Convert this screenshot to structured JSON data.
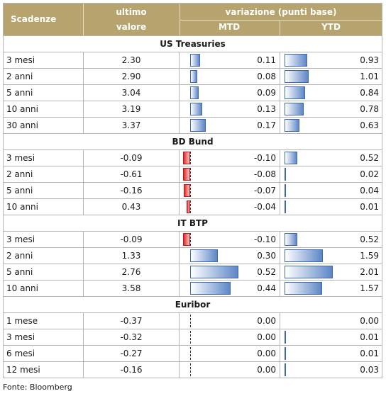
{
  "header": {
    "scadenze": "Scadenze",
    "ultimo_line1": "ultimo",
    "ultimo_line2": "valore",
    "variazione": "variazione (punti base)",
    "mtd": "MTD",
    "ytd": "YTD"
  },
  "colors": {
    "header_bg": "#b7a36e",
    "positive_bar": "#5e86c6",
    "negative_bar": "#e52b2b"
  },
  "sections": [
    {
      "title": "US Treasuries",
      "rows": [
        {
          "label": "3 mesi",
          "value": "2.30",
          "mtd": "0.11",
          "ytd": "0.93"
        },
        {
          "label": "2 anni",
          "value": "2.90",
          "mtd": "0.08",
          "ytd": "1.01"
        },
        {
          "label": "5 anni",
          "value": "3.04",
          "mtd": "0.09",
          "ytd": "0.84"
        },
        {
          "label": "10 anni",
          "value": "3.19",
          "mtd": "0.13",
          "ytd": "0.78"
        },
        {
          "label": "30 anni",
          "value": "3.37",
          "mtd": "0.17",
          "ytd": "0.63"
        }
      ]
    },
    {
      "title": "BD Bund",
      "rows": [
        {
          "label": "3 mesi",
          "value": "-0.09",
          "mtd": "-0.10",
          "ytd": "0.52"
        },
        {
          "label": "2 anni",
          "value": "-0.61",
          "mtd": "-0.08",
          "ytd": "0.02"
        },
        {
          "label": "5 anni",
          "value": "-0.16",
          "mtd": "-0.07",
          "ytd": "0.04"
        },
        {
          "label": "10 anni",
          "value": "0.43",
          "mtd": "-0.04",
          "ytd": "0.01"
        }
      ]
    },
    {
      "title": "IT BTP",
      "rows": [
        {
          "label": "3 mesi",
          "value": "-0.09",
          "mtd": "-0.10",
          "ytd": "0.52"
        },
        {
          "label": "2 anni",
          "value": "1.33",
          "mtd": "0.30",
          "ytd": "1.59"
        },
        {
          "label": "5 anni",
          "value": "2.76",
          "mtd": "0.52",
          "ytd": "2.01"
        },
        {
          "label": "10 anni",
          "value": "3.58",
          "mtd": "0.44",
          "ytd": "1.57"
        }
      ]
    },
    {
      "title": "Euribor",
      "rows": [
        {
          "label": "1 mese",
          "value": "-0.37",
          "mtd": "0.00",
          "ytd": "0.00"
        },
        {
          "label": "3 mesi",
          "value": "-0.32",
          "mtd": "0.00",
          "ytd": "0.01"
        },
        {
          "label": "6 mesi",
          "value": "-0.27",
          "mtd": "0.00",
          "ytd": "0.01"
        },
        {
          "label": "12 mesi",
          "value": "-0.16",
          "mtd": "0.00",
          "ytd": "0.03"
        }
      ]
    }
  ],
  "source": "Fonte: Bloomberg"
}
